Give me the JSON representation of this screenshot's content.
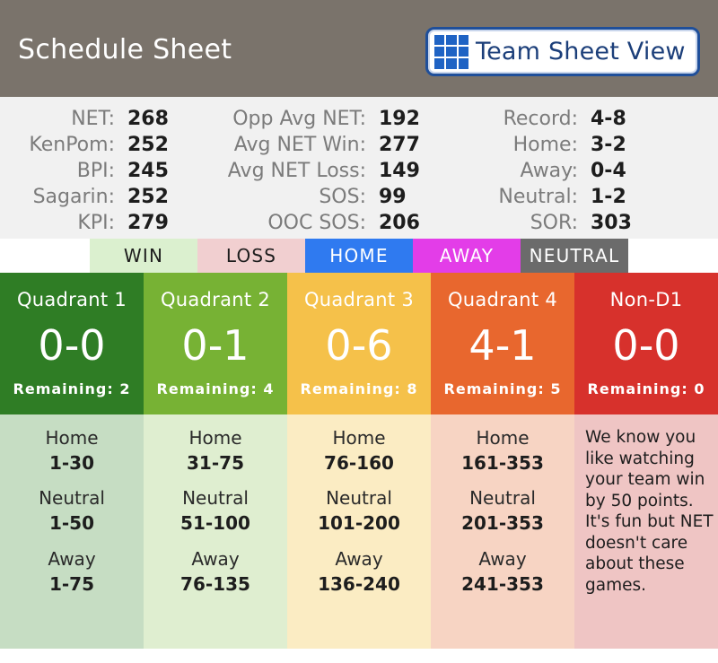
{
  "header": {
    "title": "Schedule Sheet",
    "view_button_label": "Team Sheet View",
    "view_button_icon": "grid-icon"
  },
  "stats": {
    "col1": [
      {
        "label": "NET:",
        "value": "268"
      },
      {
        "label": "KenPom:",
        "value": "252"
      },
      {
        "label": "BPI:",
        "value": "245"
      },
      {
        "label": "Sagarin:",
        "value": "252"
      },
      {
        "label": "KPI:",
        "value": "279"
      }
    ],
    "col2": [
      {
        "label": "Opp Avg NET:",
        "value": "192"
      },
      {
        "label": "Avg NET Win:",
        "value": "277"
      },
      {
        "label": "Avg NET Loss:",
        "value": "149"
      },
      {
        "label": "SOS:",
        "value": "99"
      },
      {
        "label": "OOC SOS:",
        "value": "206"
      }
    ],
    "col3": [
      {
        "label": "Record:",
        "value": "4-8"
      },
      {
        "label": "Home:",
        "value": "3-2"
      },
      {
        "label": "Away:",
        "value": "0-4"
      },
      {
        "label": "Neutral:",
        "value": "1-2"
      },
      {
        "label": "SOR:",
        "value": "303"
      }
    ]
  },
  "legend": {
    "win": "WIN",
    "loss": "LOSS",
    "home": "HOME",
    "away": "AWAY",
    "neutral": "NEUTRAL"
  },
  "quadrants": [
    {
      "title": "Quadrant 1",
      "record": "0-0",
      "remaining": "Remaining: 2",
      "home_label": "Home",
      "home": "1-30",
      "neutral_label": "Neutral",
      "neutral": "1-50",
      "away_label": "Away",
      "away": "1-75"
    },
    {
      "title": "Quadrant 2",
      "record": "0-1",
      "remaining": "Remaining: 4",
      "home_label": "Home",
      "home": "31-75",
      "neutral_label": "Neutral",
      "neutral": "51-100",
      "away_label": "Away",
      "away": "76-135"
    },
    {
      "title": "Quadrant 3",
      "record": "0-6",
      "remaining": "Remaining: 8",
      "home_label": "Home",
      "home": "76-160",
      "neutral_label": "Neutral",
      "neutral": "101-200",
      "away_label": "Away",
      "away": "136-240"
    },
    {
      "title": "Quadrant 4",
      "record": "4-1",
      "remaining": "Remaining: 5",
      "home_label": "Home",
      "home": "161-353",
      "neutral_label": "Neutral",
      "neutral": "201-353",
      "away_label": "Away",
      "away": "241-353"
    }
  ],
  "non_d1": {
    "title": "Non-D1",
    "record": "0-0",
    "remaining": "Remaining: 0",
    "text": "We know you like watching your team win by 50 points. It's fun but NET doesn't care about these games."
  },
  "colors": {
    "header_bg": "#7a736b",
    "quadrant1": "#2f7d25",
    "quadrant2": "#77b234",
    "quadrant3": "#f5c14a",
    "quadrant4": "#e8672e",
    "non_d1": "#d7312c"
  }
}
